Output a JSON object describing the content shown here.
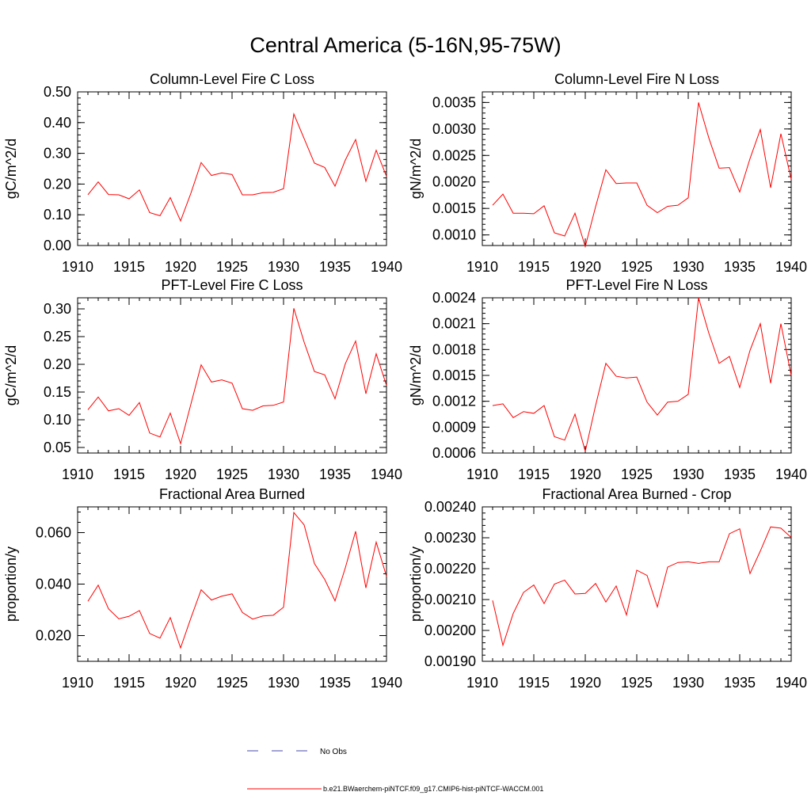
{
  "figure": {
    "title": "Central America (5-16N,95-75W)"
  },
  "legend": {
    "entries": [
      {
        "label": "No Obs",
        "color": "#4a4aa8",
        "style": "dashed"
      },
      {
        "label": "b.e21.BWaerchem-piNTCF.f09_g17.CMIP6-hist-piNTCF-WACCM.001",
        "color": "#ff0000",
        "style": "solid"
      }
    ]
  },
  "chart_data": [
    {
      "type": "line",
      "title": "Column-Level Fire C Loss",
      "xlabel": "",
      "ylabel": "gC/m^2/d",
      "xlim": [
        1910,
        1940
      ],
      "ylim": [
        0.0,
        0.5
      ],
      "xticks": [
        1910,
        1915,
        1920,
        1925,
        1930,
        1935,
        1940
      ],
      "yticks": [
        0.0,
        0.1,
        0.2,
        0.3,
        0.4,
        0.5
      ],
      "ytick_labels": [
        "0.00",
        "0.10",
        "0.20",
        "0.30",
        "0.40",
        "0.50"
      ],
      "grid": false,
      "series": [
        {
          "color": "#ff0000",
          "x": [
            1911,
            1912,
            1913,
            1914,
            1915,
            1916,
            1917,
            1918,
            1919,
            1920,
            1921,
            1922,
            1923,
            1924,
            1925,
            1926,
            1927,
            1928,
            1929,
            1930,
            1931,
            1932,
            1933,
            1934,
            1935,
            1936,
            1937,
            1938,
            1939,
            1940
          ],
          "values": [
            0.165,
            0.207,
            0.166,
            0.165,
            0.152,
            0.181,
            0.107,
            0.097,
            0.156,
            0.08,
            0.17,
            0.27,
            0.228,
            0.236,
            0.231,
            0.165,
            0.165,
            0.172,
            0.173,
            0.185,
            0.428,
            0.348,
            0.268,
            0.254,
            0.193,
            0.278,
            0.345,
            0.209,
            0.31,
            0.225
          ]
        }
      ]
    },
    {
      "type": "line",
      "title": "Column-Level Fire N Loss",
      "xlabel": "",
      "ylabel": "gN/m^2/d",
      "xlim": [
        1910,
        1940
      ],
      "ylim": [
        0.0008,
        0.0037
      ],
      "xticks": [
        1910,
        1915,
        1920,
        1925,
        1930,
        1935,
        1940
      ],
      "yticks": [
        0.001,
        0.0015,
        0.002,
        0.0025,
        0.003,
        0.0035
      ],
      "ytick_labels": [
        "0.0010",
        "0.0015",
        "0.0020",
        "0.0025",
        "0.0030",
        "0.0035"
      ],
      "grid": false,
      "series": [
        {
          "color": "#ff0000",
          "x": [
            1911,
            1912,
            1913,
            1914,
            1915,
            1916,
            1917,
            1918,
            1919,
            1920,
            1921,
            1922,
            1923,
            1924,
            1925,
            1926,
            1927,
            1928,
            1929,
            1930,
            1931,
            1932,
            1933,
            1934,
            1935,
            1936,
            1937,
            1938,
            1939,
            1940
          ],
          "values": [
            0.00156,
            0.00177,
            0.00141,
            0.00141,
            0.0014,
            0.00155,
            0.00104,
            0.00098,
            0.00141,
            0.00078,
            0.00153,
            0.00223,
            0.00197,
            0.00198,
            0.00198,
            0.00156,
            0.00142,
            0.00154,
            0.00156,
            0.0017,
            0.0035,
            0.00283,
            0.00226,
            0.00227,
            0.00181,
            0.00244,
            0.00299,
            0.00189,
            0.00291,
            0.00205
          ]
        }
      ]
    },
    {
      "type": "line",
      "title": "PFT-Level Fire C Loss",
      "xlabel": "",
      "ylabel": "gC/m^2/d",
      "xlim": [
        1910,
        1940
      ],
      "ylim": [
        0.04,
        0.32
      ],
      "xticks": [
        1910,
        1915,
        1920,
        1925,
        1930,
        1935,
        1940
      ],
      "yticks": [
        0.05,
        0.1,
        0.15,
        0.2,
        0.25,
        0.3
      ],
      "ytick_labels": [
        "0.05",
        "0.10",
        "0.15",
        "0.20",
        "0.25",
        "0.30"
      ],
      "grid": false,
      "series": [
        {
          "color": "#ff0000",
          "x": [
            1911,
            1912,
            1913,
            1914,
            1915,
            1916,
            1917,
            1918,
            1919,
            1920,
            1921,
            1922,
            1923,
            1924,
            1925,
            1926,
            1927,
            1928,
            1929,
            1930,
            1931,
            1932,
            1933,
            1934,
            1935,
            1936,
            1937,
            1938,
            1939,
            1940
          ],
          "values": [
            0.118,
            0.141,
            0.116,
            0.12,
            0.108,
            0.131,
            0.076,
            0.069,
            0.112,
            0.057,
            0.128,
            0.199,
            0.168,
            0.172,
            0.166,
            0.12,
            0.117,
            0.125,
            0.126,
            0.132,
            0.301,
            0.24,
            0.187,
            0.181,
            0.138,
            0.201,
            0.242,
            0.147,
            0.219,
            0.162
          ]
        }
      ]
    },
    {
      "type": "line",
      "title": "PFT-Level Fire N Loss",
      "xlabel": "",
      "ylabel": "gN/m^2/d",
      "xlim": [
        1910,
        1940
      ],
      "ylim": [
        0.0006,
        0.0024
      ],
      "xticks": [
        1910,
        1915,
        1920,
        1925,
        1930,
        1935,
        1940
      ],
      "yticks": [
        0.0006,
        0.0009,
        0.0012,
        0.0015,
        0.0018,
        0.0021,
        0.0024
      ],
      "ytick_labels": [
        "0.0006",
        "0.0009",
        "0.0012",
        "0.0015",
        "0.0018",
        "0.0021",
        "0.0024"
      ],
      "grid": false,
      "series": [
        {
          "color": "#ff0000",
          "x": [
            1911,
            1912,
            1913,
            1914,
            1915,
            1916,
            1917,
            1918,
            1919,
            1920,
            1921,
            1922,
            1923,
            1924,
            1925,
            1926,
            1927,
            1928,
            1929,
            1930,
            1931,
            1932,
            1933,
            1934,
            1935,
            1936,
            1937,
            1938,
            1939,
            1940
          ],
          "values": [
            0.00115,
            0.00117,
            0.00101,
            0.00108,
            0.00106,
            0.00115,
            0.00079,
            0.00075,
            0.00105,
            0.00062,
            0.00115,
            0.00164,
            0.00149,
            0.00147,
            0.00148,
            0.00119,
            0.00104,
            0.00119,
            0.0012,
            0.00128,
            0.0024,
            0.00199,
            0.00164,
            0.00172,
            0.00136,
            0.00179,
            0.0021,
            0.00141,
            0.0021,
            0.0015
          ]
        }
      ]
    },
    {
      "type": "line",
      "title": "Fractional Area Burned",
      "xlabel": "",
      "ylabel": "proportion/y",
      "xlim": [
        1910,
        1940
      ],
      "ylim": [
        0.01,
        0.07
      ],
      "xticks": [
        1910,
        1915,
        1920,
        1925,
        1930,
        1935,
        1940
      ],
      "yticks": [
        0.02,
        0.04,
        0.06
      ],
      "ytick_labels": [
        "0.020",
        "0.040",
        "0.060"
      ],
      "grid": false,
      "series": [
        {
          "color": "#ff0000",
          "x": [
            1911,
            1912,
            1913,
            1914,
            1915,
            1916,
            1917,
            1918,
            1919,
            1920,
            1921,
            1922,
            1923,
            1924,
            1925,
            1926,
            1927,
            1928,
            1929,
            1930,
            1931,
            1932,
            1933,
            1934,
            1935,
            1936,
            1937,
            1938,
            1939,
            1940
          ],
          "values": [
            0.0333,
            0.0396,
            0.0304,
            0.0265,
            0.0275,
            0.0297,
            0.0208,
            0.019,
            0.027,
            0.0152,
            0.0268,
            0.0378,
            0.0338,
            0.0353,
            0.0362,
            0.029,
            0.0264,
            0.0276,
            0.0279,
            0.031,
            0.0678,
            0.063,
            0.048,
            0.0418,
            0.0335,
            0.0463,
            0.0605,
            0.0385,
            0.0563,
            0.043
          ]
        }
      ]
    },
    {
      "type": "line",
      "title": "Fractional Area Burned - Crop",
      "xlabel": "",
      "ylabel": "proportion/y",
      "xlim": [
        1910,
        1940
      ],
      "ylim": [
        0.0019,
        0.0024
      ],
      "xticks": [
        1910,
        1915,
        1920,
        1925,
        1930,
        1935,
        1940
      ],
      "yticks": [
        0.0019,
        0.002,
        0.0021,
        0.0022,
        0.0023,
        0.0024
      ],
      "ytick_labels": [
        "0.00190",
        "0.00200",
        "0.00210",
        "0.00220",
        "0.00230",
        "0.00240"
      ],
      "grid": false,
      "series": [
        {
          "color": "#ff0000",
          "x": [
            1911,
            1912,
            1913,
            1914,
            1915,
            1916,
            1917,
            1918,
            1919,
            1920,
            1921,
            1922,
            1923,
            1924,
            1925,
            1926,
            1927,
            1928,
            1929,
            1930,
            1931,
            1932,
            1933,
            1934,
            1935,
            1936,
            1937,
            1938,
            1939,
            1940
          ],
          "values": [
            0.002097,
            0.001952,
            0.002055,
            0.002123,
            0.002147,
            0.002087,
            0.00215,
            0.002163,
            0.002118,
            0.00212,
            0.002152,
            0.002092,
            0.002144,
            0.00205,
            0.002195,
            0.002178,
            0.002076,
            0.002205,
            0.00222,
            0.002222,
            0.002217,
            0.002222,
            0.002222,
            0.002313,
            0.002329,
            0.002184,
            0.002257,
            0.002335,
            0.002331,
            0.002301
          ]
        }
      ]
    }
  ]
}
